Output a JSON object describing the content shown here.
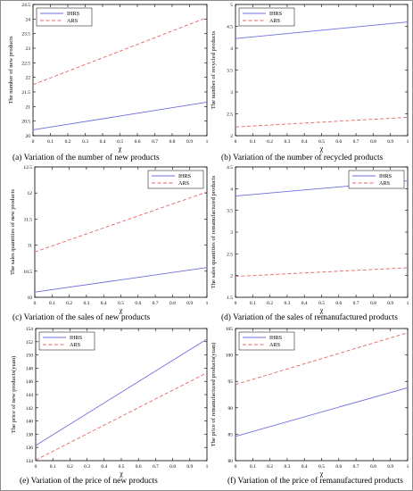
{
  "chart_data": [
    {
      "type": "line",
      "caption": "(a)   Variation of the number of new products",
      "xlabel": "χ",
      "ylabel": "The number of new products",
      "xlim": [
        0,
        1
      ],
      "ylim": [
        20,
        24.5
      ],
      "xticks": [
        "0",
        "0.1",
        "0.2",
        "0.3",
        "0.4",
        "0.5",
        "0.6",
        "0.7",
        "0.8",
        "0.9",
        "1"
      ],
      "yticks": [
        "20",
        "20.5",
        "21",
        "21.5",
        "22",
        "22.5",
        "23",
        "23.5",
        "24",
        "24.5"
      ],
      "legend": "top-left",
      "grid": false,
      "series": [
        {
          "name": "IHRS",
          "x": [
            0,
            1
          ],
          "values": [
            20.2,
            21.15
          ]
        },
        {
          "name": "ARS",
          "x": [
            0,
            1
          ],
          "values": [
            21.75,
            24.05
          ]
        }
      ]
    },
    {
      "type": "line",
      "caption": "(b)   Variation of the number of recycled products",
      "xlabel": "χ",
      "ylabel": "The number of recycled products",
      "xlim": [
        0,
        1
      ],
      "ylim": [
        2,
        5
      ],
      "xticks": [
        "0",
        "0.1",
        "0.2",
        "0.3",
        "0.4",
        "0.5",
        "0.6",
        "0.7",
        "0.8",
        "0.9",
        "1"
      ],
      "yticks": [
        "2",
        "2.5",
        "3",
        "3.5",
        "4",
        "4.5",
        "5"
      ],
      "legend": "top-left",
      "grid": false,
      "series": [
        {
          "name": "IHRS",
          "x": [
            0,
            1
          ],
          "values": [
            4.22,
            4.6
          ]
        },
        {
          "name": "ARS",
          "x": [
            0,
            1
          ],
          "values": [
            2.2,
            2.42
          ]
        }
      ]
    },
    {
      "type": "line",
      "caption": "(c)   Variation of the sales of new products",
      "xlabel": "χ",
      "ylabel": "The sales quantities of new products",
      "xlim": [
        0,
        1
      ],
      "ylim": [
        10,
        12.5
      ],
      "xticks": [
        "0",
        "0.1",
        "0.2",
        "0.3",
        "0.4",
        "0.5",
        "0.6",
        "0.7",
        "0.8",
        "0.9",
        "1"
      ],
      "yticks": [
        "10",
        "10.5",
        "11",
        "11.5",
        "12",
        "12.5"
      ],
      "legend": "top-right",
      "grid": false,
      "series": [
        {
          "name": "IHRS",
          "x": [
            0,
            1
          ],
          "values": [
            10.1,
            10.57
          ]
        },
        {
          "name": "ARS",
          "x": [
            0,
            1
          ],
          "values": [
            10.87,
            12.02
          ]
        }
      ]
    },
    {
      "type": "line",
      "caption": "(d)   Variation of the sales of remanufactured products",
      "xlabel": "χ",
      "ylabel": "The sales quantities of remanufactured products",
      "xlim": [
        0,
        1
      ],
      "ylim": [
        1.5,
        4.5
      ],
      "xticks": [
        "0",
        "0.1",
        "0.2",
        "0.3",
        "0.4",
        "0.5",
        "0.6",
        "0.7",
        "0.8",
        "0.9",
        "1"
      ],
      "yticks": [
        "1.5",
        "2",
        "2.5",
        "3",
        "3.5",
        "4",
        "4.5"
      ],
      "legend": "top-right",
      "grid": false,
      "series": [
        {
          "name": "IHRS",
          "x": [
            0,
            1
          ],
          "values": [
            3.83,
            4.18
          ]
        },
        {
          "name": "ARS",
          "x": [
            0,
            1
          ],
          "values": [
            1.98,
            2.18
          ]
        }
      ]
    },
    {
      "type": "line",
      "caption": "(e) Variation of the price of new products",
      "xlabel": "χ",
      "ylabel": "The price of new products(yuan)",
      "xlim": [
        0,
        1
      ],
      "ylim": [
        134,
        154
      ],
      "xticks": [
        "0",
        "0.1",
        "0.2",
        "0.3",
        "0.4",
        "0.5",
        "0.6",
        "0.7",
        "0.8",
        "0.9",
        "1"
      ],
      "yticks": [
        "134",
        "136",
        "138",
        "140",
        "142",
        "144",
        "146",
        "148",
        "150",
        "152",
        "154"
      ],
      "legend": "top-left",
      "grid": false,
      "series": [
        {
          "name": "IHRS",
          "x": [
            0,
            1
          ],
          "values": [
            136.3,
            152.4
          ]
        },
        {
          "name": "ARS",
          "x": [
            0,
            1
          ],
          "values": [
            134.1,
            147.3
          ]
        }
      ]
    },
    {
      "type": "line",
      "caption": "(f) Variation of the price of remanufactured products",
      "xlabel": "χ",
      "ylabel": "The price of remanufactured products(yuan)",
      "xlim": [
        0,
        1
      ],
      "ylim": [
        80,
        105
      ],
      "xticks": [
        "0",
        "0.1",
        "0.2",
        "0.3",
        "0.4",
        "0.5",
        "0.6",
        "0.7",
        "0.8",
        "0.9",
        "1"
      ],
      "yticks": [
        "80",
        "85",
        "90",
        "95",
        "100",
        "105"
      ],
      "legend": "top-left",
      "grid": false,
      "series": [
        {
          "name": "IHRS",
          "x": [
            0,
            1
          ],
          "values": [
            84.6,
            93.8
          ]
        },
        {
          "name": "ARS",
          "x": [
            0,
            1
          ],
          "values": [
            94.4,
            104.2
          ]
        }
      ]
    }
  ],
  "style": {
    "ihrs_color": "#6f6fe0",
    "ars_color": "#e86464",
    "axis_color": "#000000"
  }
}
